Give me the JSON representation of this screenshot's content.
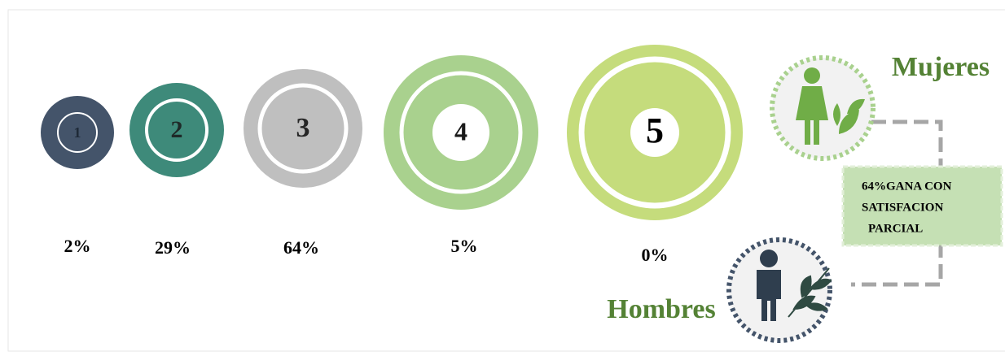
{
  "items": [
    {
      "label": "1",
      "percent": "2%"
    },
    {
      "label": "2",
      "percent": "29%"
    },
    {
      "label": "3",
      "percent": "64%"
    },
    {
      "label": "4",
      "percent": "5%"
    },
    {
      "label": "5",
      "percent": "0%"
    }
  ],
  "women": "Mujeres",
  "men": "Hombres",
  "note": [
    "64%GANA CON",
    "SATISFACION",
    "PARCIAL"
  ]
}
